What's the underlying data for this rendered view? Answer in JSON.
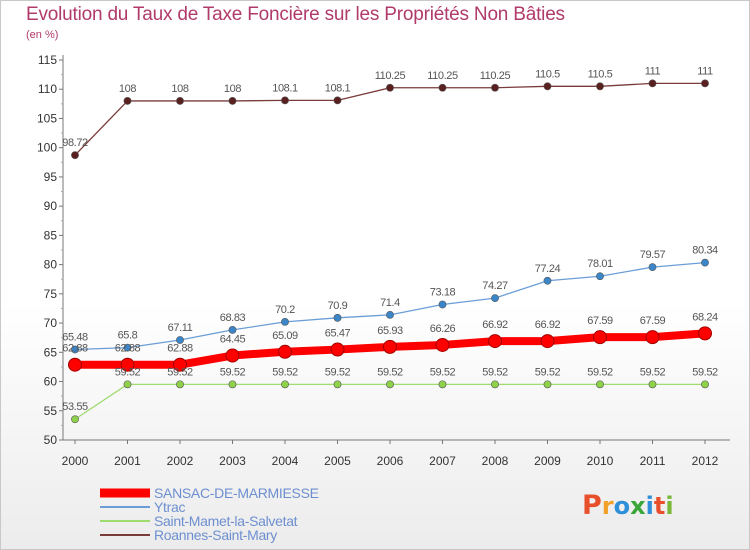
{
  "title": "Evolution du Taux de Taxe Foncière sur les Propriétés Non Bâties",
  "subtitle": "(en %)",
  "logo": {
    "text": "Proxiti",
    "letter_colors": [
      "#e8502c",
      "#f2a12a",
      "#2f8fd8",
      "#3aa63a",
      "#2f8fd8",
      "#e8502c",
      "#7ab83a"
    ]
  },
  "chart_data": {
    "type": "line",
    "title": "Evolution du Taux de Taxe Foncière sur les Propriétés Non Bâties",
    "ylabel": "(en %)",
    "xlabel": "",
    "ylim": [
      50,
      115
    ],
    "ytick_step": 5,
    "grid": false,
    "legend_position": "bottom-left",
    "categories": [
      "2000",
      "2001",
      "2002",
      "2003",
      "2004",
      "2005",
      "2006",
      "2007",
      "2008",
      "2009",
      "2010",
      "2011",
      "2012"
    ],
    "series": [
      {
        "name": "SANSAC-DE-MARMIESSE",
        "color": "#ff0000",
        "emphasis": true,
        "values": [
          62.88,
          62.88,
          62.88,
          64.45,
          65.09,
          65.47,
          65.93,
          66.26,
          66.92,
          66.92,
          67.59,
          67.59,
          68.24
        ],
        "labels": [
          "62.88",
          "62.88",
          "62.88",
          "64.45",
          "65.09",
          "65.47",
          "65.93",
          "66.26",
          "66.92",
          "66.92",
          "67.59",
          "67.59",
          "68.24"
        ]
      },
      {
        "name": "Ytrac",
        "color": "#6b9ed6",
        "marker": "#3a86c8",
        "values": [
          65.48,
          65.8,
          67.11,
          68.83,
          70.2,
          70.9,
          71.4,
          73.18,
          74.27,
          77.24,
          78.01,
          79.57,
          80.34
        ],
        "labels": [
          "65.48",
          "65.8",
          "67.11",
          "68.83",
          "70.2",
          "70.9",
          "71.4",
          "73.18",
          "74.27",
          "77.24",
          "78.01",
          "79.57",
          "80.34"
        ]
      },
      {
        "name": "Saint-Mamet-la-Salvetat",
        "color": "#9fdc70",
        "marker": "#8ed24a",
        "values": [
          53.55,
          59.52,
          59.52,
          59.52,
          59.52,
          59.52,
          59.52,
          59.52,
          59.52,
          59.52,
          59.52,
          59.52,
          59.52
        ],
        "labels": [
          "53.55",
          "59.52",
          "59.52",
          "59.52",
          "59.52",
          "59.52",
          "59.52",
          "59.52",
          "59.52",
          "59.52",
          "59.52",
          "59.52",
          "59.52"
        ]
      },
      {
        "name": "Roannes-Saint-Mary",
        "color": "#7a3b3b",
        "marker": "#5a1f1f",
        "values": [
          98.72,
          108,
          108,
          108,
          108.1,
          108.1,
          110.25,
          110.25,
          110.25,
          110.5,
          110.5,
          111,
          111
        ],
        "labels": [
          "98.72",
          "108",
          "108",
          "108",
          "108.1",
          "108.1",
          "110.25",
          "110.25",
          "110.25",
          "110.5",
          "110.5",
          "111",
          "111"
        ]
      }
    ]
  }
}
